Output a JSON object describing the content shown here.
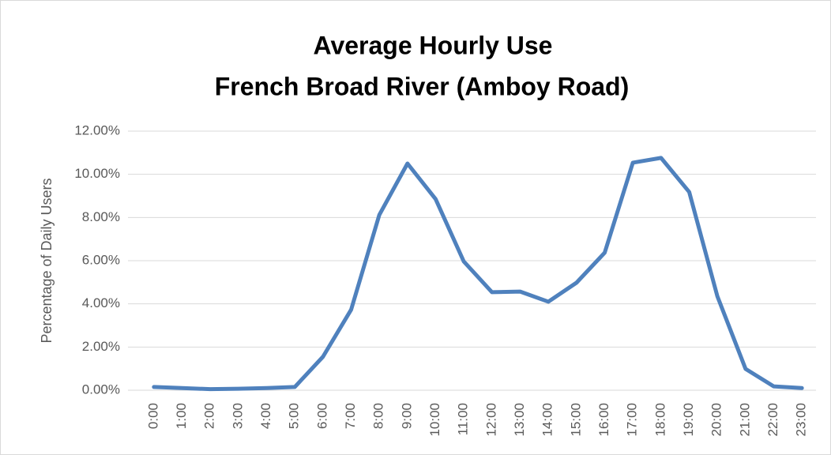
{
  "chart_data": {
    "type": "line",
    "title": [
      "Average Hourly Use",
      "French Broad River (Amboy Road)"
    ],
    "y_label": "Percentage of Daily Users",
    "categories": [
      "0:00",
      "1:00",
      "2:00",
      "3:00",
      "4:00",
      "5:00",
      "6:00",
      "7:00",
      "8:00",
      "9:00",
      "10:00",
      "11:00",
      "12:00",
      "13:00",
      "14:00",
      "15:00",
      "16:00",
      "17:00",
      "18:00",
      "19:00",
      "20:00",
      "21:00",
      "22:00",
      "23:00"
    ],
    "series": [
      {
        "name": "Percentage of Daily Users",
        "color": "#4f81bd",
        "values": [
          0.15,
          0.1,
          0.05,
          0.07,
          0.1,
          0.15,
          1.55,
          3.73,
          8.12,
          10.5,
          8.85,
          5.96,
          4.54,
          4.57,
          4.1,
          4.98,
          6.37,
          10.54,
          10.76,
          9.18,
          4.35,
          0.99,
          0.18,
          0.1
        ]
      }
    ],
    "ylim": [
      0,
      12
    ],
    "yticks": [
      {
        "value": 0,
        "label": "0.00%"
      },
      {
        "value": 2,
        "label": "2.00%"
      },
      {
        "value": 4,
        "label": "4.00%"
      },
      {
        "value": 6,
        "label": "6.00%"
      },
      {
        "value": 8,
        "label": "8.00%"
      },
      {
        "value": 10,
        "label": "10.00%"
      },
      {
        "value": 12,
        "label": "12.00%"
      }
    ],
    "grid": true
  }
}
